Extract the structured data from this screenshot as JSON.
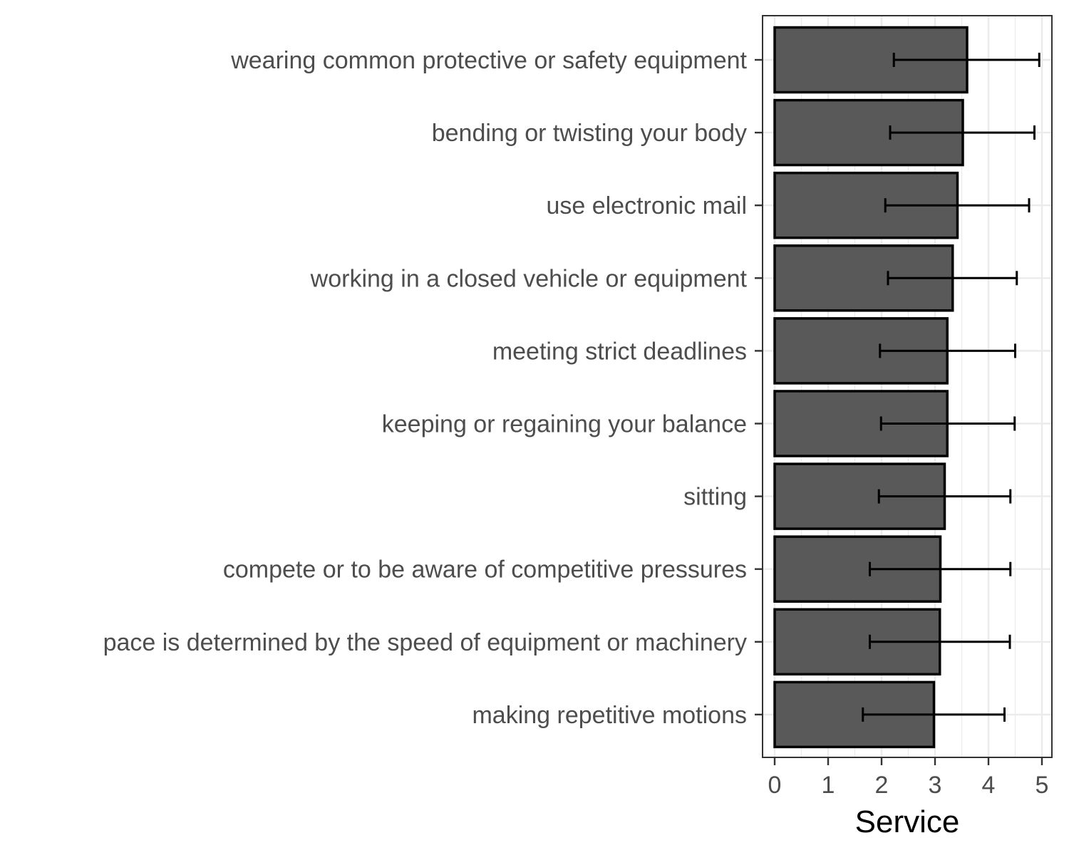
{
  "chart_data": {
    "type": "bar",
    "orientation": "horizontal",
    "title": "",
    "xlabel": "Service",
    "ylabel": "",
    "xlim": [
      0,
      5
    ],
    "xticks": [
      0,
      1,
      2,
      3,
      4,
      5
    ],
    "grid": true,
    "legend": "none",
    "colors": {
      "bar_fill": "#595959",
      "bar_stroke": "#000000",
      "error_bar": "#000000",
      "panel_border": "#333333",
      "grid": "#ebebeb"
    },
    "categories": [
      "wearing common protective or safety equipment",
      "bending or twisting your body",
      "use electronic mail",
      "working in a closed vehicle or equipment",
      "meeting strict deadlines",
      "keeping or regaining your balance",
      "sitting",
      "compete or to be aware of competitive pressures",
      "pace is determined by the speed of equipment or machinery",
      "making repetitive motions"
    ],
    "values": [
      3.6,
      3.52,
      3.42,
      3.33,
      3.23,
      3.23,
      3.18,
      3.1,
      3.09,
      2.98
    ],
    "error_low": [
      2.23,
      2.16,
      2.07,
      2.12,
      1.97,
      1.99,
      1.95,
      1.78,
      1.78,
      1.65
    ],
    "error_high": [
      4.95,
      4.86,
      4.76,
      4.53,
      4.5,
      4.49,
      4.41,
      4.41,
      4.4,
      4.3
    ]
  }
}
